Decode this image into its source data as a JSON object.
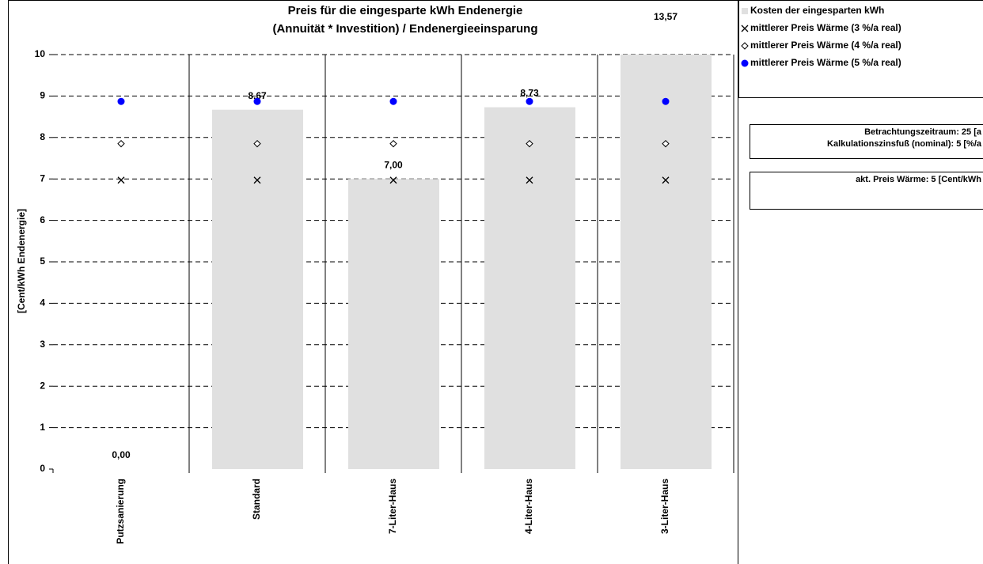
{
  "chart_data": {
    "type": "bar",
    "title": [
      "Preis für die eingesparte kWh Endenergie",
      "(Annuität * Investition) / Endenergieeinsparung"
    ],
    "ylabel": "[Cent/kWh Endenergie]",
    "categories": [
      "Putzsanierung",
      "Standard",
      "7-Liter-Haus",
      "4-Liter-Haus",
      "3-Liter-Haus"
    ],
    "ylim": [
      0,
      10
    ],
    "yticks": [
      0,
      1,
      2,
      3,
      4,
      5,
      6,
      7,
      8,
      9,
      10
    ],
    "grid": true,
    "series": [
      {
        "name": "Kosten der eingesparten kWh",
        "color": "#e0e0e0",
        "marker": "bar",
        "values": [
          0,
          8.67,
          7.0,
          8.73,
          13.57
        ],
        "value_labels": [
          "0,00",
          "8,67",
          "7,00",
          "8,73",
          "13,57"
        ]
      },
      {
        "name": "mittlerer Preis Wärme (3 %/a real)",
        "color": "#000000",
        "marker": "x",
        "values": [
          6.97,
          6.97,
          6.97,
          6.97,
          6.97
        ]
      },
      {
        "name": "mittlerer Preis Wärme (4 %/a real)",
        "color": "#000000",
        "marker": "diamond",
        "values": [
          7.85,
          7.85,
          7.85,
          7.85,
          7.85
        ]
      },
      {
        "name": "mittlerer Preis Wärme (5 %/a real)",
        "color": "#0000ff",
        "marker": "circle",
        "values": [
          8.87,
          8.87,
          8.87,
          8.87,
          8.87
        ]
      }
    ],
    "info": [
      [
        "Betrachtungszeitraum:  25 [a",
        "Kalkulationszinsfuß (nominal):   5 [%/a"
      ],
      [
        "akt. Preis Wärme:   5 [Cent/kWh"
      ]
    ]
  }
}
